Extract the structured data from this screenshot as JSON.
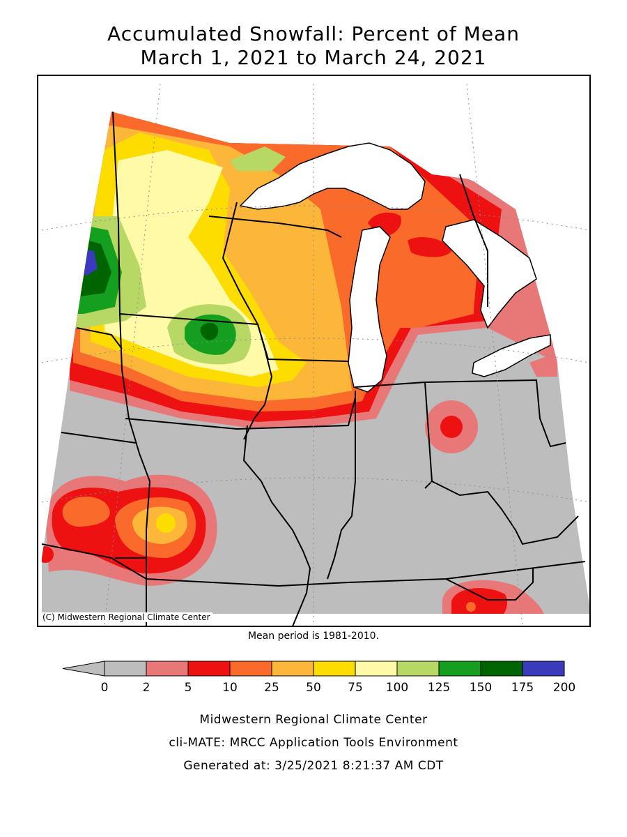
{
  "title": {
    "line1": "Accumulated Snowfall: Percent of Mean",
    "line2": "March 1, 2021 to March 24, 2021"
  },
  "map": {
    "copyright": "(C) Midwestern Regional Climate Center",
    "mean_period": "Mean period is 1981-2010.",
    "background_color": "#bdbdbd",
    "lake_color": "#ffffff"
  },
  "legend": {
    "bins": [
      {
        "from": "0",
        "to": "2",
        "color": "#bdbdbd"
      },
      {
        "from": "2",
        "to": "5",
        "color": "#e87878"
      },
      {
        "from": "5",
        "to": "10",
        "color": "#ee1111"
      },
      {
        "from": "10",
        "to": "25",
        "color": "#fa6a2a"
      },
      {
        "from": "25",
        "to": "50",
        "color": "#fcb63a"
      },
      {
        "from": "50",
        "to": "75",
        "color": "#fddc00"
      },
      {
        "from": "75",
        "to": "100",
        "color": "#fffaa8"
      },
      {
        "from": "100",
        "to": "125",
        "color": "#b8d865"
      },
      {
        "from": "125",
        "to": "150",
        "color": "#14a01e"
      },
      {
        "from": "150",
        "to": "175",
        "color": "#006400"
      },
      {
        "from": "175",
        "to": "200",
        "color": "#3a3abd"
      }
    ],
    "tick_labels": [
      "0",
      "2",
      "5",
      "10",
      "25",
      "50",
      "75",
      "100",
      "125",
      "150",
      "175",
      "200"
    ]
  },
  "footer": {
    "line1": "Midwestern Regional Climate Center",
    "line2": "cli-MATE: MRCC Application Tools Environment",
    "line3": "Generated at: 3/25/2021 8:21:37 AM CDT"
  }
}
